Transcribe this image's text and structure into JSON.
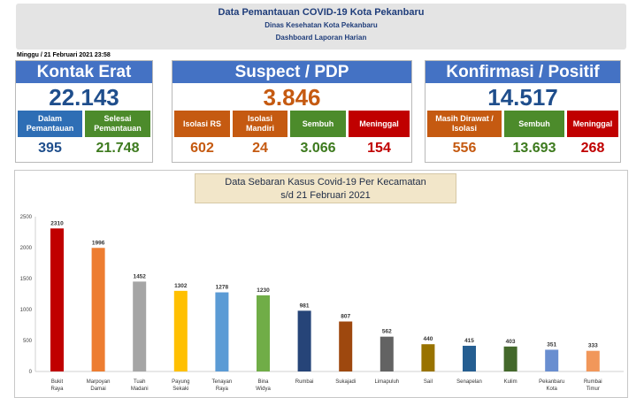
{
  "header": {
    "title": "Data Pemantauan COVID-19 Kota Pekanbaru",
    "subtitle": "Dinas Kesehatan Kota Pekanbaru",
    "subtitle2": "Dashboard Laporan Harian"
  },
  "date": "Minggu / 21 Februari 2021 23:58",
  "kontak": {
    "title": "Kontak Erat",
    "total": "22.143",
    "items": [
      {
        "label": "Dalam Pemantauan",
        "value": "395",
        "color": "#2e6eb5"
      },
      {
        "label": "Selesai Pemantauan",
        "value": "21.748",
        "color": "#4c8b2b"
      }
    ]
  },
  "suspect": {
    "title": "Suspect / PDP",
    "total": "3.846",
    "items": [
      {
        "label": "Isolasi RS",
        "value": "602",
        "color": "#c55a11"
      },
      {
        "label": "Isolasi Mandiri",
        "value": "24",
        "color": "#c55a11"
      },
      {
        "label": "Sembuh",
        "value": "3.066",
        "color": "#4c8b2b"
      },
      {
        "label": "Meninggal",
        "value": "154",
        "color": "#c00000"
      }
    ]
  },
  "konfirmasi": {
    "title": "Konfirmasi / Positif",
    "total": "14.517",
    "items": [
      {
        "label": "Masih Dirawat / Isolasi",
        "value": "556",
        "color": "#c55a11"
      },
      {
        "label": "Sembuh",
        "value": "13.693",
        "color": "#4c8b2b"
      },
      {
        "label": "Meninggal",
        "value": "268",
        "color": "#c00000"
      }
    ]
  },
  "chart_data": {
    "type": "bar",
    "title": "Data Sebaran Kasus Covid-19 Per Kecamatan",
    "subtitle": "s/d 21 Februari 2021",
    "categories": [
      "Bukit Raya",
      "Marpoyan Damai",
      "Tuah Madani",
      "Payung Sekaki",
      "Tenayan Raya",
      "Bina Widya",
      "Rumbai",
      "Sukajadi",
      "Limapuluh",
      "Sail",
      "Senapelan",
      "Kulim",
      "Pekanbaru Kota",
      "Rumbai Timur"
    ],
    "values": [
      2310,
      1996,
      1452,
      1302,
      1278,
      1230,
      981,
      807,
      562,
      440,
      415,
      403,
      351,
      333
    ],
    "colors": [
      "#c00000",
      "#ed7d31",
      "#a5a5a5",
      "#ffc000",
      "#5b9bd5",
      "#70ad47",
      "#264478",
      "#9e480e",
      "#636363",
      "#997300",
      "#255e91",
      "#43682b",
      "#698ed0",
      "#f1975a"
    ],
    "yticks": [
      0,
      500,
      1000,
      1500,
      2000,
      2500
    ],
    "ylim": [
      0,
      2500
    ],
    "xlabel": "",
    "ylabel": "",
    "grid": false
  }
}
